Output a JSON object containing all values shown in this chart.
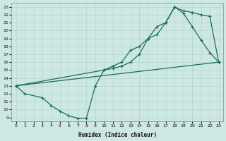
{
  "xlabel": "Humidex (Indice chaleur)",
  "bg_color": "#cde8e4",
  "grid_color": "#b8d8d4",
  "line_color": "#1a6b5a",
  "xlim": [
    -0.5,
    23.5
  ],
  "ylim": [
    8.5,
    23.5
  ],
  "xticks": [
    0,
    1,
    2,
    3,
    4,
    5,
    6,
    7,
    8,
    9,
    10,
    11,
    12,
    13,
    14,
    15,
    16,
    17,
    18,
    19,
    20,
    21,
    22,
    23
  ],
  "yticks": [
    9,
    10,
    11,
    12,
    13,
    14,
    15,
    16,
    17,
    18,
    19,
    20,
    21,
    22,
    23
  ],
  "curve1_x": [
    0,
    10,
    11,
    12,
    13,
    14,
    15,
    16,
    17,
    18,
    19,
    20,
    21,
    22,
    23
  ],
  "curve1_y": [
    13,
    15.0,
    15.5,
    16.0,
    17.5,
    18.0,
    19.0,
    19.5,
    21.0,
    23.0,
    22.5,
    22.3,
    22.0,
    21.8,
    16.0
  ],
  "curve2_x": [
    0,
    1,
    3,
    4,
    5,
    6,
    7,
    8,
    9,
    10,
    11,
    12,
    13,
    14,
    15,
    16,
    17,
    18,
    19,
    20,
    21,
    22,
    23
  ],
  "curve2_y": [
    13,
    12,
    11.5,
    10.5,
    9.8,
    9.2,
    8.9,
    8.9,
    13.0,
    15.0,
    15.2,
    15.5,
    16.0,
    17.0,
    19.0,
    20.5,
    21.0,
    23.0,
    22.2,
    20.5,
    18.8,
    17.2,
    16.0
  ],
  "curve3_x": [
    0,
    23
  ],
  "curve3_y": [
    13.0,
    16.0
  ]
}
